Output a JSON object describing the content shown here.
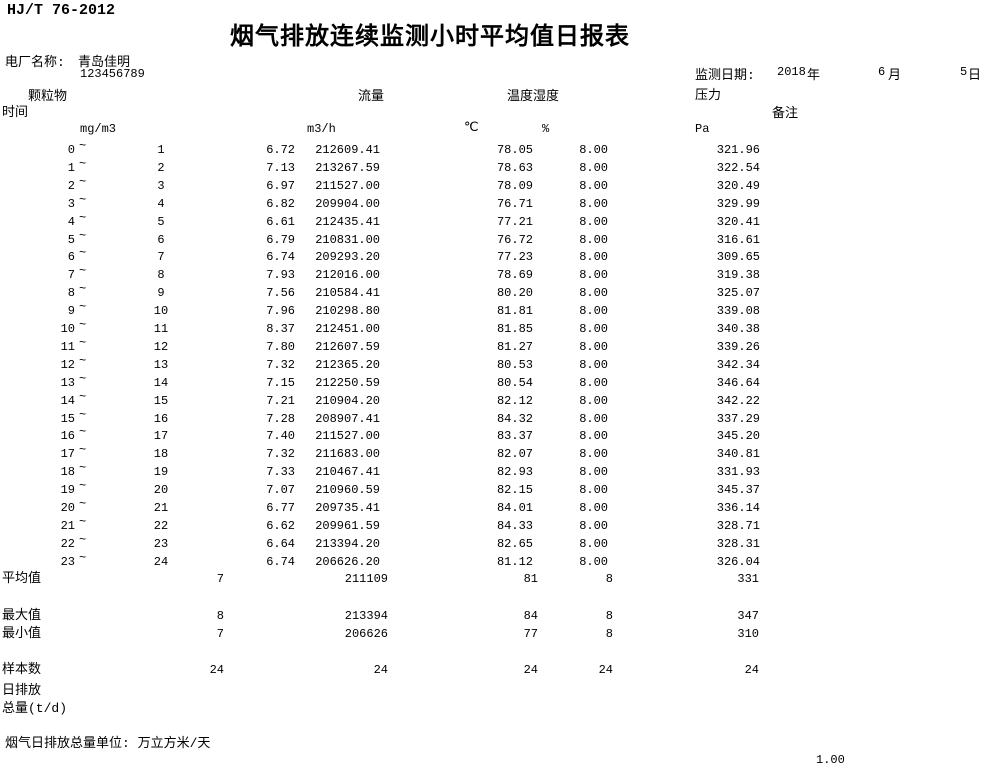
{
  "standard": "HJ/T 76-2012",
  "title": "烟气排放连续监测小时平均值日报表",
  "plant": {
    "label": "电厂名称:",
    "name": "青岛佳明",
    "mark": "`",
    "code": "123456789"
  },
  "monitor_date": {
    "label": "监测日期:",
    "year": "2018",
    "year_suffix": "年",
    "month": "6",
    "month_suffix": "月",
    "day": "5",
    "day_suffix": "日"
  },
  "headers": {
    "time": "时间",
    "pm": "颗粒物",
    "flow": "流量",
    "temp": "温度",
    "humidity": "湿度",
    "pressure": "压力",
    "remark": "备注"
  },
  "units": {
    "pm": "mg/m3",
    "flow": "m3/h",
    "temp": "℃",
    "humidity": "%",
    "pressure": "Pa"
  },
  "tilde": "~",
  "rows": [
    {
      "start": "0",
      "end": "1",
      "pm": "6.72",
      "flow": "212609.41",
      "temp": "78.05",
      "hum": "8.00",
      "pressure": "321.96"
    },
    {
      "start": "1",
      "end": "2",
      "pm": "7.13",
      "flow": "213267.59",
      "temp": "78.63",
      "hum": "8.00",
      "pressure": "322.54"
    },
    {
      "start": "2",
      "end": "3",
      "pm": "6.97",
      "flow": "211527.00",
      "temp": "78.09",
      "hum": "8.00",
      "pressure": "320.49"
    },
    {
      "start": "3",
      "end": "4",
      "pm": "6.82",
      "flow": "209904.00",
      "temp": "76.71",
      "hum": "8.00",
      "pressure": "329.99"
    },
    {
      "start": "4",
      "end": "5",
      "pm": "6.61",
      "flow": "212435.41",
      "temp": "77.21",
      "hum": "8.00",
      "pressure": "320.41"
    },
    {
      "start": "5",
      "end": "6",
      "pm": "6.79",
      "flow": "210831.00",
      "temp": "76.72",
      "hum": "8.00",
      "pressure": "316.61"
    },
    {
      "start": "6",
      "end": "7",
      "pm": "6.74",
      "flow": "209293.20",
      "temp": "77.23",
      "hum": "8.00",
      "pressure": "309.65"
    },
    {
      "start": "7",
      "end": "8",
      "pm": "7.93",
      "flow": "212016.00",
      "temp": "78.69",
      "hum": "8.00",
      "pressure": "319.38"
    },
    {
      "start": "8",
      "end": "9",
      "pm": "7.56",
      "flow": "210584.41",
      "temp": "80.20",
      "hum": "8.00",
      "pressure": "325.07"
    },
    {
      "start": "9",
      "end": "10",
      "pm": "7.96",
      "flow": "210298.80",
      "temp": "81.81",
      "hum": "8.00",
      "pressure": "339.08"
    },
    {
      "start": "10",
      "end": "11",
      "pm": "8.37",
      "flow": "212451.00",
      "temp": "81.85",
      "hum": "8.00",
      "pressure": "340.38"
    },
    {
      "start": "11",
      "end": "12",
      "pm": "7.80",
      "flow": "212607.59",
      "temp": "81.27",
      "hum": "8.00",
      "pressure": "339.26"
    },
    {
      "start": "12",
      "end": "13",
      "pm": "7.32",
      "flow": "212365.20",
      "temp": "80.53",
      "hum": "8.00",
      "pressure": "342.34"
    },
    {
      "start": "13",
      "end": "14",
      "pm": "7.15",
      "flow": "212250.59",
      "temp": "80.54",
      "hum": "8.00",
      "pressure": "346.64"
    },
    {
      "start": "14",
      "end": "15",
      "pm": "7.21",
      "flow": "210904.20",
      "temp": "82.12",
      "hum": "8.00",
      "pressure": "342.22"
    },
    {
      "start": "15",
      "end": "16",
      "pm": "7.28",
      "flow": "208907.41",
      "temp": "84.32",
      "hum": "8.00",
      "pressure": "337.29"
    },
    {
      "start": "16",
      "end": "17",
      "pm": "7.40",
      "flow": "211527.00",
      "temp": "83.37",
      "hum": "8.00",
      "pressure": "345.20"
    },
    {
      "start": "17",
      "end": "18",
      "pm": "7.32",
      "flow": "211683.00",
      "temp": "82.07",
      "hum": "8.00",
      "pressure": "340.81"
    },
    {
      "start": "18",
      "end": "19",
      "pm": "7.33",
      "flow": "210467.41",
      "temp": "82.93",
      "hum": "8.00",
      "pressure": "331.93"
    },
    {
      "start": "19",
      "end": "20",
      "pm": "7.07",
      "flow": "210960.59",
      "temp": "82.15",
      "hum": "8.00",
      "pressure": "345.37"
    },
    {
      "start": "20",
      "end": "21",
      "pm": "6.77",
      "flow": "209735.41",
      "temp": "84.01",
      "hum": "8.00",
      "pressure": "336.14"
    },
    {
      "start": "21",
      "end": "22",
      "pm": "6.62",
      "flow": "209961.59",
      "temp": "84.33",
      "hum": "8.00",
      "pressure": "328.71"
    },
    {
      "start": "22",
      "end": "23",
      "pm": "6.64",
      "flow": "213394.20",
      "temp": "82.65",
      "hum": "8.00",
      "pressure": "328.31"
    },
    {
      "start": "23",
      "end": "24",
      "pm": "6.74",
      "flow": "206626.20",
      "temp": "81.12",
      "hum": "8.00",
      "pressure": "326.04"
    }
  ],
  "summary": {
    "avg": {
      "label": "平均值",
      "pm": "7",
      "flow": "211109",
      "temp": "81",
      "hum": "8",
      "pressure": "331"
    },
    "max": {
      "label": "最大值",
      "pm": "8",
      "flow": "213394",
      "temp": "84",
      "hum": "8",
      "pressure": "347"
    },
    "min": {
      "label": "最小值",
      "pm": "7",
      "flow": "206626",
      "temp": "77",
      "hum": "8",
      "pressure": "310"
    },
    "samples": {
      "label": "样本数",
      "pm": "24",
      "flow": "24",
      "temp": "24",
      "hum": "24",
      "pressure": "24"
    }
  },
  "daily_emission": {
    "line1": "日排放",
    "line2": "总量(t/d)"
  },
  "footer": {
    "note": "烟气日排放总量单位: 万立方米/天",
    "page_value": "1.00"
  }
}
